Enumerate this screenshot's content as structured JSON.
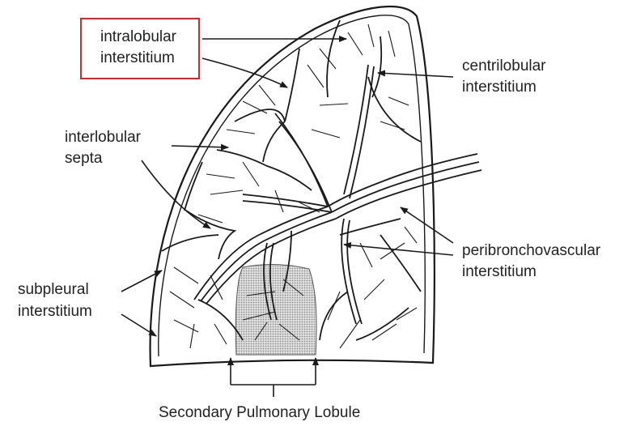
{
  "labels": {
    "intralobular": [
      "intralobular",
      "interstitium"
    ],
    "centrilobular": [
      "centrilobular",
      "interstitium"
    ],
    "interlobular": [
      "interlobular",
      "septa"
    ],
    "peribronchovascular": [
      "peribronchovascular",
      "interstitium"
    ],
    "subpleural": [
      "subpleural",
      "interstitium"
    ],
    "caption": "Secondary Pulmonary Lobule"
  },
  "colors": {
    "ink": "#1a1a1a",
    "highlight": "#d9262a",
    "lobule_shade": "#bdbdbd"
  }
}
